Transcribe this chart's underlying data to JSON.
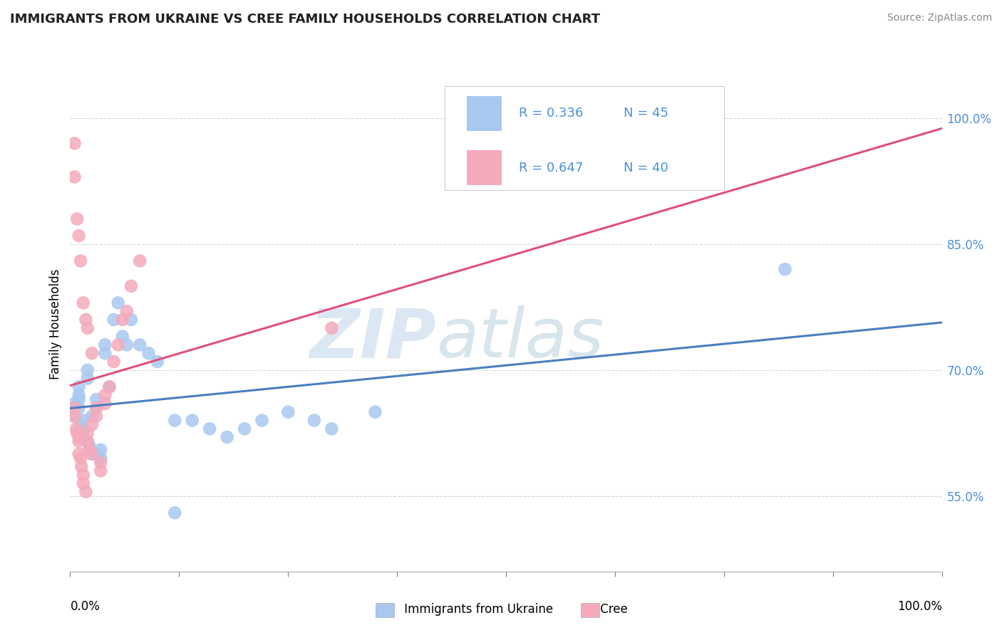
{
  "title": "IMMIGRANTS FROM UKRAINE VS CREE FAMILY HOUSEHOLDS CORRELATION CHART",
  "source": "Source: ZipAtlas.com",
  "ylabel": "Family Households",
  "ytick_labels": [
    "55.0%",
    "70.0%",
    "85.0%",
    "100.0%"
  ],
  "ytick_values": [
    0.55,
    0.7,
    0.85,
    1.0
  ],
  "xlim": [
    0.0,
    1.0
  ],
  "ylim": [
    0.46,
    1.05
  ],
  "legend1_r": "0.336",
  "legend1_n": "45",
  "legend2_r": "0.647",
  "legend2_n": "40",
  "blue_color": "#A8C8F0",
  "pink_color": "#F4AABB",
  "blue_line_color": "#4A7FC0",
  "pink_line_color": "#E0507A",
  "watermark_zip": "ZIP",
  "watermark_atlas": "atlas",
  "ukraine_x": [
    0.005,
    0.005,
    0.01,
    0.01,
    0.01,
    0.01,
    0.012,
    0.013,
    0.015,
    0.015,
    0.015,
    0.02,
    0.02,
    0.02,
    0.022,
    0.025,
    0.025,
    0.03,
    0.03,
    0.03,
    0.035,
    0.035,
    0.04,
    0.04,
    0.045,
    0.05,
    0.055,
    0.06,
    0.065,
    0.07,
    0.08,
    0.09,
    0.1,
    0.12,
    0.14,
    0.16,
    0.18,
    0.2,
    0.22,
    0.25,
    0.28,
    0.3,
    0.35,
    0.82,
    0.12
  ],
  "ukraine_y": [
    0.645,
    0.66,
    0.655,
    0.665,
    0.67,
    0.68,
    0.635,
    0.625,
    0.62,
    0.63,
    0.64,
    0.69,
    0.7,
    0.615,
    0.61,
    0.6,
    0.645,
    0.655,
    0.665,
    0.6,
    0.595,
    0.605,
    0.72,
    0.73,
    0.68,
    0.76,
    0.78,
    0.74,
    0.73,
    0.76,
    0.73,
    0.72,
    0.71,
    0.64,
    0.64,
    0.63,
    0.62,
    0.63,
    0.64,
    0.65,
    0.64,
    0.63,
    0.65,
    0.82,
    0.53
  ],
  "cree_x": [
    0.005,
    0.005,
    0.007,
    0.008,
    0.01,
    0.01,
    0.01,
    0.012,
    0.013,
    0.015,
    0.015,
    0.018,
    0.02,
    0.02,
    0.022,
    0.025,
    0.025,
    0.03,
    0.03,
    0.035,
    0.035,
    0.04,
    0.04,
    0.045,
    0.05,
    0.055,
    0.06,
    0.065,
    0.07,
    0.08,
    0.005,
    0.005,
    0.008,
    0.01,
    0.012,
    0.015,
    0.018,
    0.02,
    0.025,
    0.3
  ],
  "cree_y": [
    0.645,
    0.655,
    0.63,
    0.625,
    0.62,
    0.615,
    0.6,
    0.595,
    0.585,
    0.575,
    0.565,
    0.555,
    0.615,
    0.625,
    0.605,
    0.6,
    0.635,
    0.645,
    0.655,
    0.59,
    0.58,
    0.66,
    0.67,
    0.68,
    0.71,
    0.73,
    0.76,
    0.77,
    0.8,
    0.83,
    0.97,
    0.93,
    0.88,
    0.86,
    0.83,
    0.78,
    0.76,
    0.75,
    0.72,
    0.75
  ]
}
